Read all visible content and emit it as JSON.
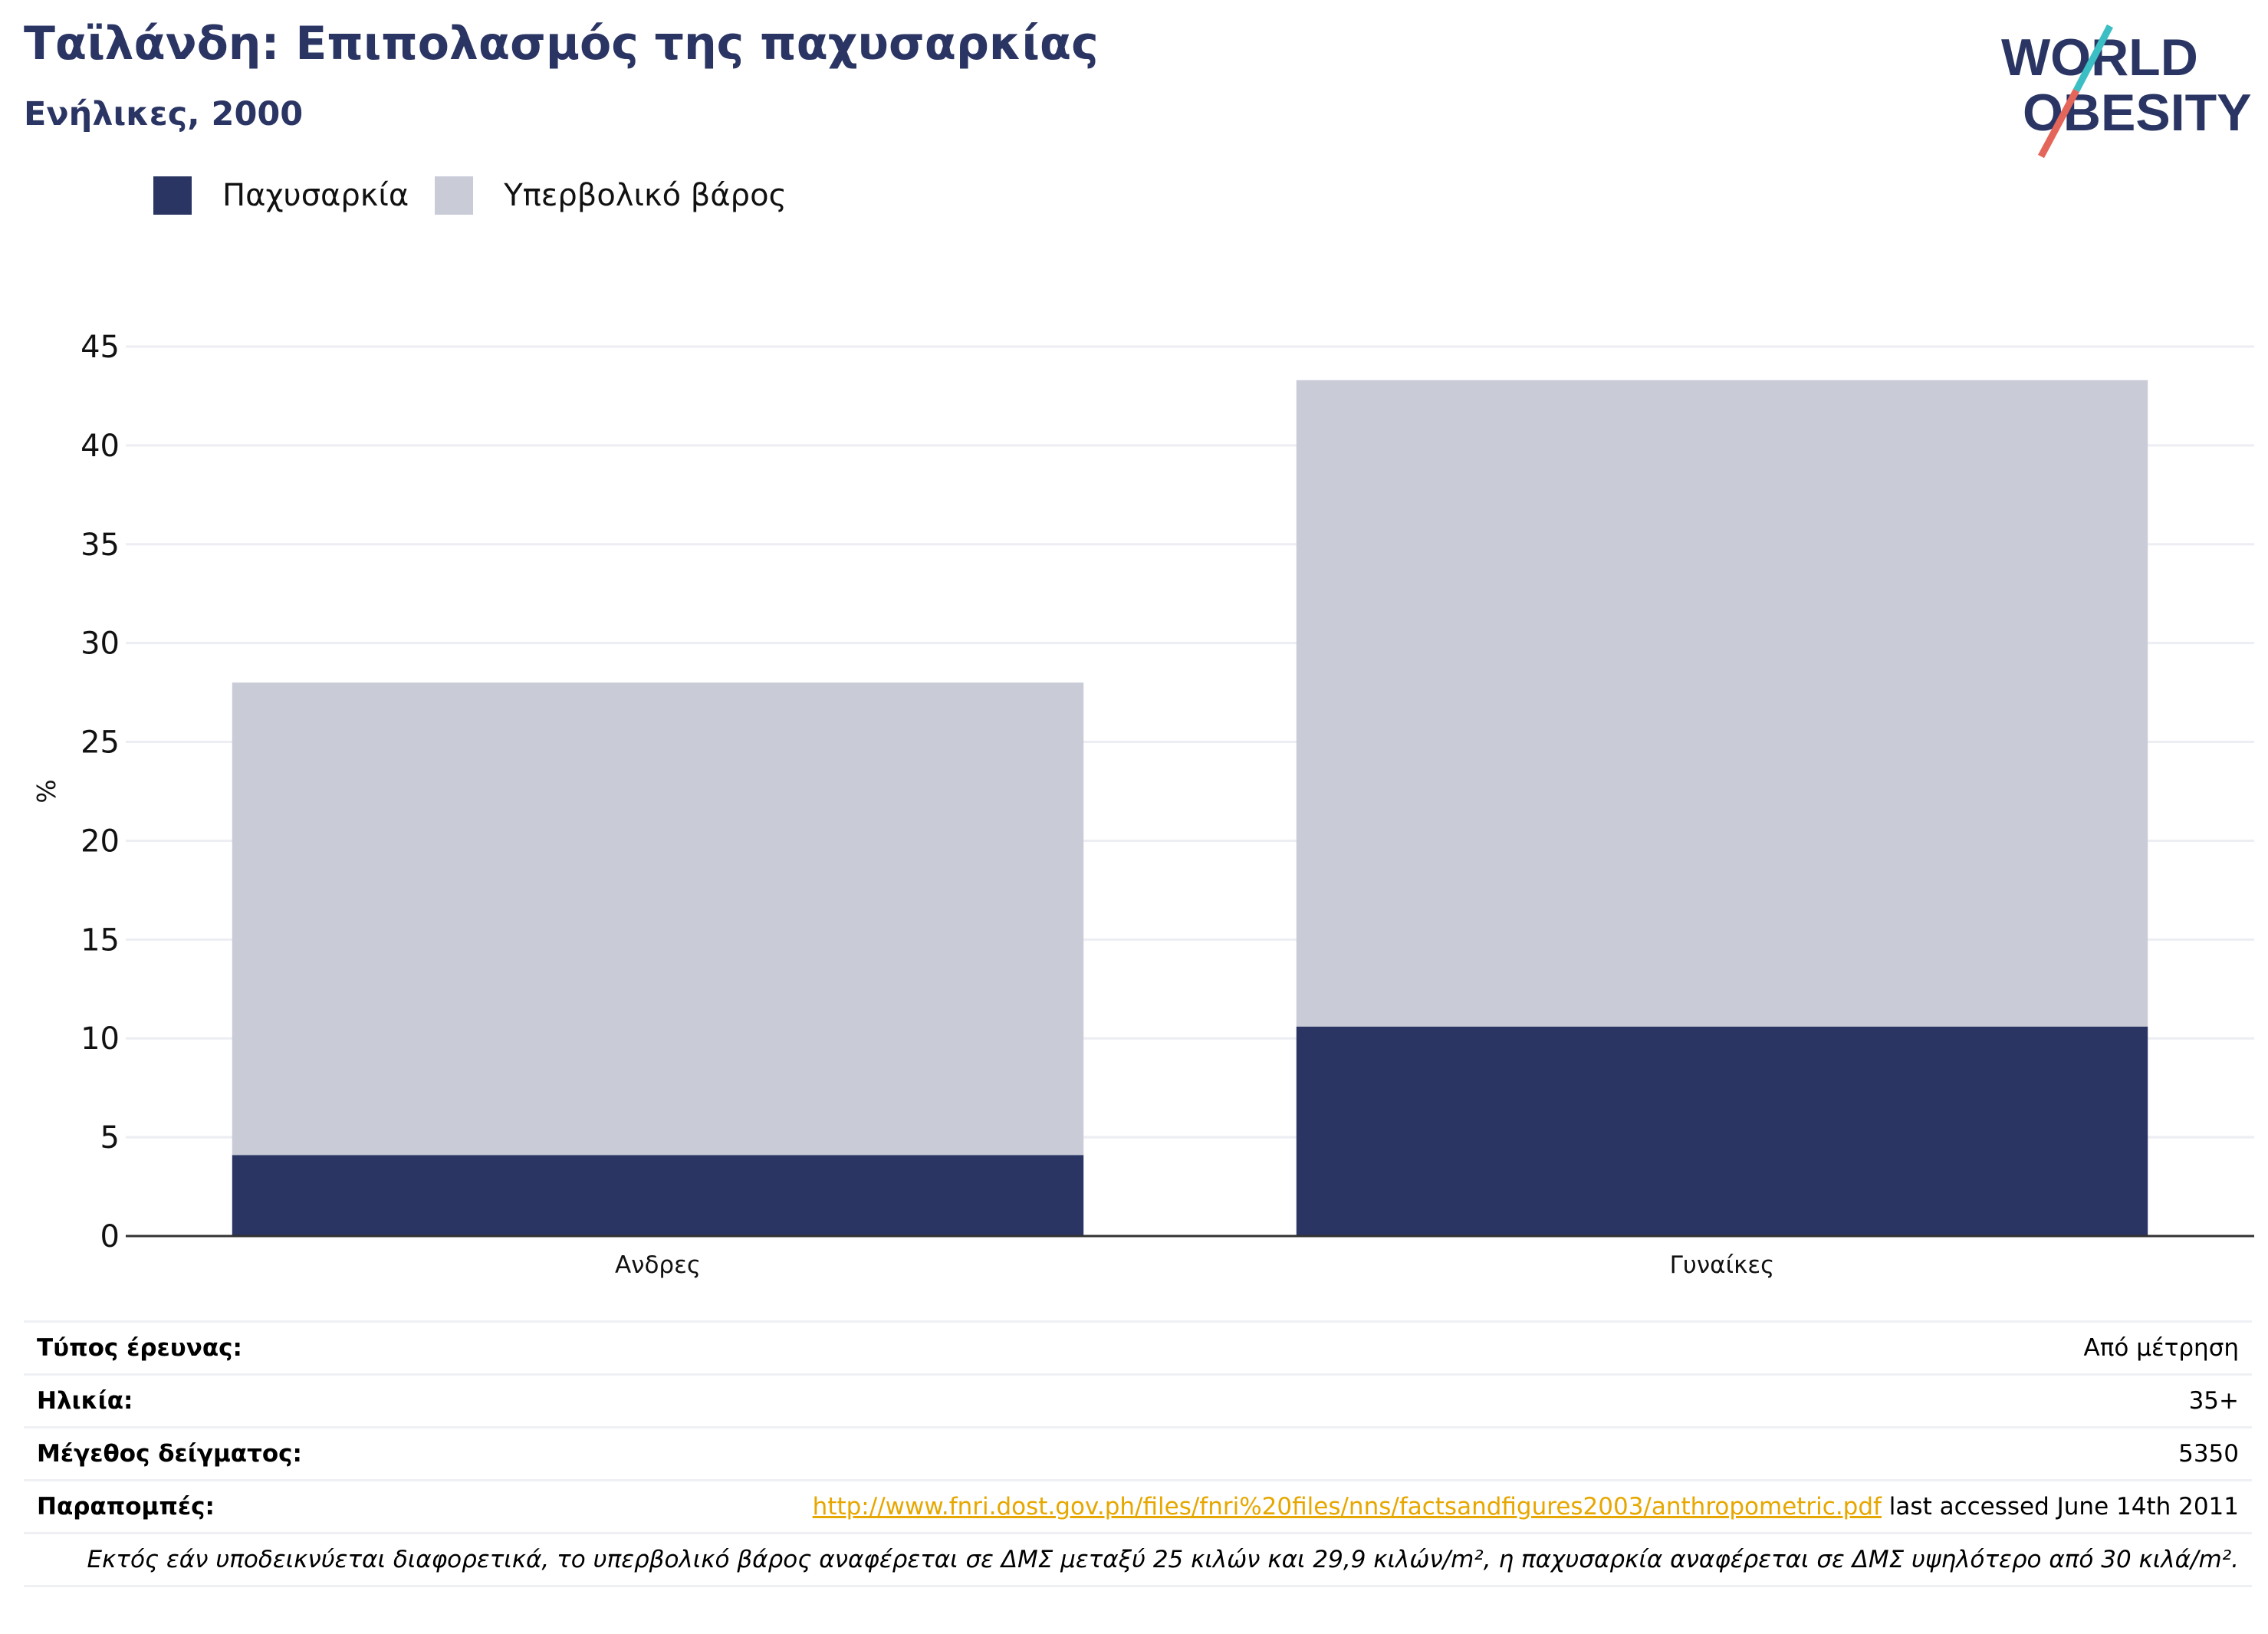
{
  "header": {
    "title": "Ταϊλάνδη: Επιπολασμός της παχυσαρκίας",
    "subtitle": "Ενήλικες, 2000"
  },
  "logo": {
    "line1": "WORLD",
    "line2": "OBESITY",
    "accent_colors": [
      "#3bbfc4",
      "#e4665a"
    ],
    "text_color": "#2a3564"
  },
  "colors": {
    "obesity": "#2a3564",
    "overweight": "#c9cbd7"
  },
  "chart_data": {
    "type": "bar",
    "stacked": true,
    "categories": [
      "Ανδρες",
      "Γυναίκες"
    ],
    "series": [
      {
        "name": "Παχυσαρκία",
        "values": [
          4.1,
          10.6
        ]
      },
      {
        "name": "Υπερβολικό βάρος",
        "values": [
          23.9,
          32.7
        ]
      }
    ],
    "ylabel": "%",
    "ylim": [
      0,
      45
    ],
    "yticks": [
      0,
      5,
      10,
      15,
      20,
      25,
      30,
      35,
      40,
      45
    ],
    "grid": true,
    "legend_position": "top-left"
  },
  "info": {
    "rows": [
      {
        "key": "Τύπος έρευνας:",
        "value": "Από μέτρηση"
      },
      {
        "key": "Ηλικία:",
        "value": "35+"
      },
      {
        "key": "Μέγεθος δείγματος:",
        "value": "5350"
      }
    ],
    "references": {
      "key": "Παραπομπές:",
      "link": "http://www.fnri.dost.gov.ph/files/fnri%20files/nns/factsandfigures2003/anthropometric.pdf",
      "suffix": " last accessed June 14th 2011"
    },
    "note": "Εκτός εάν υποδεικνύεται διαφορετικά, το υπερβολικό βάρος αναφέρεται σε ΔΜΣ μεταξύ 25 κιλών και 29,9 κιλών/m², η παχυσαρκία αναφέρεται σε ΔΜΣ υψηλότερο από 30 κιλά/m²."
  }
}
